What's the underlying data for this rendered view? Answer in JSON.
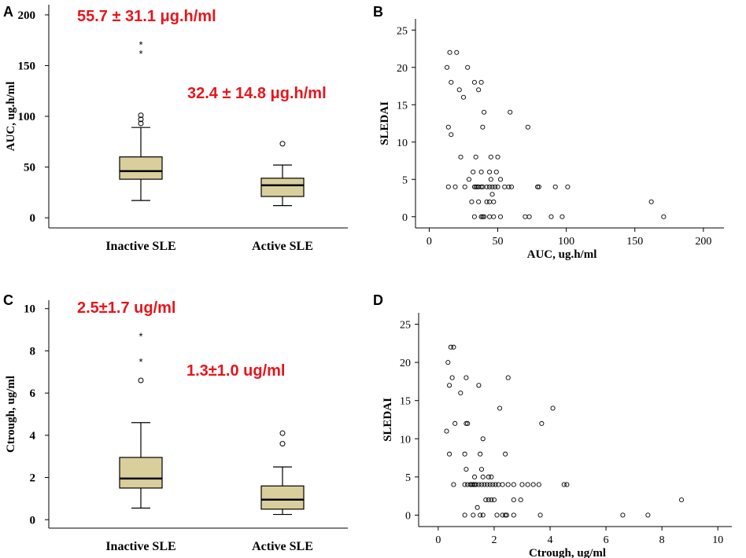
{
  "colors": {
    "box_fill": "#d9cf9c",
    "annotation": "#e8141c",
    "axis": "#000000",
    "marker": "#000000"
  },
  "chart_data": [
    {
      "panel": "A",
      "type": "box",
      "title": "",
      "xlabel": "",
      "ylabel": "AUC, ug.h/ml",
      "ylim": [
        -10,
        210
      ],
      "yticks": [
        "0",
        "50",
        "100",
        "150",
        "200"
      ],
      "categories": [
        "Inactive SLE",
        "Active SLE"
      ],
      "boxes": [
        {
          "category": "Inactive SLE",
          "whisker_low": 17,
          "q1": 38,
          "median": 46,
          "q3": 60,
          "whisker_high": 89,
          "outliers_circle": [
            93,
            97,
            101
          ],
          "outliers_star": [
            162,
            171
          ]
        },
        {
          "category": "Active SLE",
          "whisker_low": 12,
          "q1": 21,
          "median": 32,
          "q3": 39,
          "whisker_high": 52,
          "outliers_circle": [
            73
          ],
          "outliers_star": []
        }
      ],
      "annotations": [
        {
          "text": "55.7 ± 31.1 μg.h/ml",
          "for": "Inactive SLE"
        },
        {
          "text": "32.4 ± 14.8 μg.h/ml",
          "for": "Active SLE"
        }
      ]
    },
    {
      "panel": "B",
      "type": "scatter",
      "title": "",
      "xlabel": "AUC, ug.h/ml",
      "ylabel": "SLEDAI",
      "xlim": [
        -10,
        215
      ],
      "ylim": [
        -1.5,
        26.5
      ],
      "xticks": [
        "0",
        "50",
        "100",
        "150",
        "200"
      ],
      "yticks": [
        "0",
        "5",
        "10",
        "15",
        "20",
        "25"
      ],
      "x": [
        15,
        20,
        13,
        16,
        28,
        33,
        38,
        22,
        36,
        25,
        59,
        72,
        14,
        16,
        40,
        39,
        23,
        34,
        50,
        45,
        32,
        38,
        44,
        49,
        52,
        29,
        14,
        19,
        36,
        33,
        38,
        26,
        44,
        48,
        58,
        35,
        34,
        39,
        42,
        46,
        50,
        55,
        60,
        79,
        80,
        92,
        101,
        31,
        36,
        42,
        47,
        46,
        44,
        45,
        33,
        38,
        39,
        40,
        44,
        47,
        52,
        70,
        73,
        89,
        97,
        162,
        171
      ],
      "y": [
        22,
        22,
        20,
        18,
        20,
        18,
        18,
        17,
        17,
        16,
        14,
        12,
        12,
        11,
        14,
        12,
        8,
        8,
        8,
        8,
        6,
        6,
        6,
        6,
        5,
        5,
        4,
        4,
        4,
        4,
        4,
        4,
        4,
        4,
        4,
        4,
        4,
        4,
        4,
        4,
        4,
        4,
        4,
        4,
        4,
        4,
        4,
        2,
        2,
        2,
        2,
        3,
        2,
        5,
        0,
        0,
        0,
        0,
        0,
        0,
        0,
        0,
        0,
        0,
        0,
        2,
        0
      ]
    },
    {
      "panel": "C",
      "type": "box",
      "title": "",
      "xlabel": "",
      "ylabel": "Ctrough, ug/ml",
      "ylim": [
        -0.4,
        10.4
      ],
      "yticks": [
        "0",
        "2",
        "4",
        "6",
        "8",
        "10"
      ],
      "categories": [
        "Inactive SLE",
        "Active SLE"
      ],
      "boxes": [
        {
          "category": "Inactive SLE",
          "whisker_low": 0.55,
          "q1": 1.5,
          "median": 1.95,
          "q3": 2.95,
          "whisker_high": 4.6,
          "outliers_circle": [
            6.6
          ],
          "outliers_star": [
            7.5,
            8.7
          ]
        },
        {
          "category": "Active SLE",
          "whisker_low": 0.25,
          "q1": 0.5,
          "median": 0.95,
          "q3": 1.6,
          "whisker_high": 2.5,
          "outliers_circle": [
            3.6,
            4.1
          ],
          "outliers_star": []
        }
      ],
      "annotations": [
        {
          "text": "2.5±1.7 ug/ml",
          "for": "Inactive SLE"
        },
        {
          "text": "1.3±1.0 ug/ml",
          "for": "Active SLE"
        }
      ]
    },
    {
      "panel": "D",
      "type": "scatter",
      "title": "",
      "xlabel": "Ctrough, ug/ml",
      "ylabel": "SLEDAI",
      "xlim": [
        -0.7,
        10.5
      ],
      "ylim": [
        -1.5,
        26.5
      ],
      "xticks": [
        "0",
        "2",
        "4",
        "6",
        "8",
        "10"
      ],
      "yticks": [
        "0",
        "5",
        "10",
        "15",
        "20",
        "25"
      ],
      "x": [
        0.45,
        0.55,
        0.35,
        0.5,
        1.0,
        2.5,
        0.4,
        1.45,
        0.8,
        2.2,
        4.1,
        0.3,
        0.6,
        1.0,
        1.05,
        3.7,
        1.6,
        0.4,
        0.95,
        1.5,
        2.4,
        1.0,
        1.3,
        1.55,
        0.55,
        1.3,
        1.6,
        1.8,
        1.9,
        1.2,
        0.95,
        1.05,
        1.15,
        1.25,
        1.35,
        1.45,
        1.55,
        1.65,
        1.75,
        1.85,
        1.95,
        2.05,
        2.15,
        2.3,
        2.5,
        2.7,
        3.0,
        3.2,
        3.4,
        3.6,
        4.5,
        4.6,
        1.7,
        1.8,
        1.9,
        2.0,
        2.7,
        2.95,
        8.7,
        0.95,
        1.25,
        1.5,
        1.6,
        2.1,
        2.3,
        2.4,
        2.45,
        2.7,
        3.65,
        6.6,
        7.5,
        1.4
      ],
      "y": [
        22,
        22,
        20,
        18,
        18,
        18,
        17,
        17,
        16,
        14,
        14,
        11,
        12,
        12,
        12,
        12,
        10,
        8,
        8,
        8,
        8,
        6,
        5,
        6,
        4,
        4,
        5,
        5,
        5,
        4,
        4,
        4,
        4,
        4,
        4,
        4,
        4,
        4,
        4,
        4,
        4,
        4,
        4,
        4,
        4,
        4,
        4,
        4,
        4,
        4,
        4,
        4,
        2,
        2,
        2,
        2,
        2,
        2,
        2,
        0,
        0,
        0,
        0,
        0,
        0,
        0,
        0,
        0,
        0,
        0,
        0,
        1
      ]
    }
  ]
}
